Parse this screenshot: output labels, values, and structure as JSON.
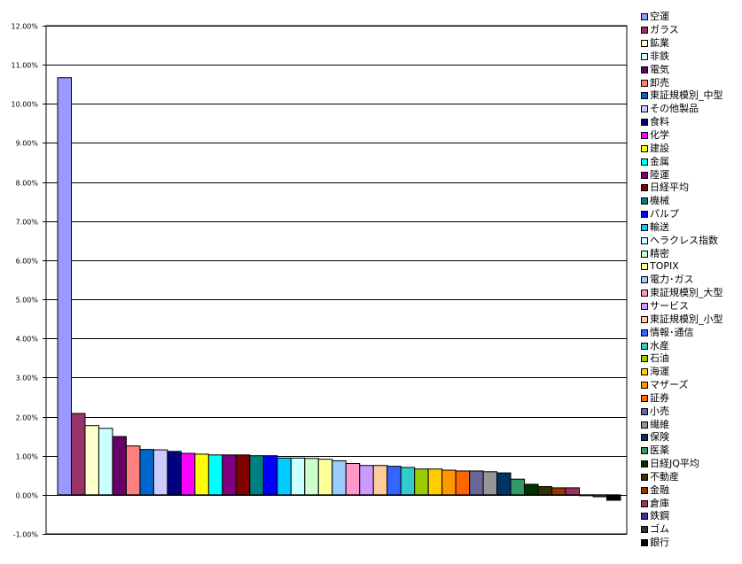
{
  "chart_data": {
    "type": "bar",
    "ylim": [
      -0.01,
      0.12
    ],
    "grid": true,
    "legend_position": "right",
    "y_tick_labels": [
      "-1.00%",
      "0.00%",
      "1.00%",
      "2.00%",
      "3.00%",
      "4.00%",
      "5.00%",
      "6.00%",
      "7.00%",
      "8.00%",
      "9.00%",
      "10.00%",
      "11.00%",
      "12.00%"
    ],
    "series": [
      {
        "name": "空運",
        "value": 0.1067,
        "color": "#9999FF"
      },
      {
        "name": "ガラス",
        "value": 0.0208,
        "color": "#993366"
      },
      {
        "name": "鉱業",
        "value": 0.0177,
        "color": "#FFFFCC"
      },
      {
        "name": "非鉄",
        "value": 0.017,
        "color": "#CCFFFF"
      },
      {
        "name": "電気",
        "value": 0.0149,
        "color": "#660066"
      },
      {
        "name": "卸売",
        "value": 0.0125,
        "color": "#FF8080"
      },
      {
        "name": "東証規模別_中型",
        "value": 0.0116,
        "color": "#0066CC"
      },
      {
        "name": "その他製品",
        "value": 0.0115,
        "color": "#CCCCFF"
      },
      {
        "name": "食料",
        "value": 0.0111,
        "color": "#000080"
      },
      {
        "name": "化学",
        "value": 0.0106,
        "color": "#FF00FF"
      },
      {
        "name": "建設",
        "value": 0.0104,
        "color": "#FFFF00"
      },
      {
        "name": "金属",
        "value": 0.0102,
        "color": "#00FFFF"
      },
      {
        "name": "陸運",
        "value": 0.0102,
        "color": "#800080"
      },
      {
        "name": "日経平均",
        "value": 0.0102,
        "color": "#800000"
      },
      {
        "name": "機械",
        "value": 0.01,
        "color": "#008080"
      },
      {
        "name": "パルプ",
        "value": 0.01,
        "color": "#0000FF"
      },
      {
        "name": "輸送",
        "value": 0.0094,
        "color": "#00CCFF"
      },
      {
        "name": "ヘラクレス指数",
        "value": 0.0094,
        "color": "#CCFFFF"
      },
      {
        "name": "精密",
        "value": 0.0093,
        "color": "#CCFFCC"
      },
      {
        "name": "TOPIX",
        "value": 0.0091,
        "color": "#FFFF99"
      },
      {
        "name": "電力･ガス",
        "value": 0.0087,
        "color": "#99CCFF"
      },
      {
        "name": "東証規模別_大型",
        "value": 0.008,
        "color": "#FF99CC"
      },
      {
        "name": "サービス",
        "value": 0.0075,
        "color": "#CC99FF"
      },
      {
        "name": "東証規模別_小型",
        "value": 0.0075,
        "color": "#FFCC99"
      },
      {
        "name": "情報･通信",
        "value": 0.0073,
        "color": "#3366FF"
      },
      {
        "name": "水産",
        "value": 0.007,
        "color": "#33CCCC"
      },
      {
        "name": "石油",
        "value": 0.0066,
        "color": "#99CC00"
      },
      {
        "name": "海運",
        "value": 0.0066,
        "color": "#FFCC00"
      },
      {
        "name": "マザーズ",
        "value": 0.0063,
        "color": "#FF9900"
      },
      {
        "name": "証券",
        "value": 0.0061,
        "color": "#FF6600"
      },
      {
        "name": "小売",
        "value": 0.0061,
        "color": "#666699"
      },
      {
        "name": "繊維",
        "value": 0.0059,
        "color": "#969696"
      },
      {
        "name": "保険",
        "value": 0.0056,
        "color": "#003366"
      },
      {
        "name": "医薬",
        "value": 0.004,
        "color": "#339966"
      },
      {
        "name": "日経JQ平均",
        "value": 0.0027,
        "color": "#003300"
      },
      {
        "name": "不動産",
        "value": 0.0021,
        "color": "#333300"
      },
      {
        "name": "金融",
        "value": 0.0018,
        "color": "#993300"
      },
      {
        "name": "倉庫",
        "value": 0.0018,
        "color": "#993366"
      },
      {
        "name": "鉄鋼",
        "value": -0.0002,
        "color": "#333399"
      },
      {
        "name": "ゴム",
        "value": -0.0005,
        "color": "#333333"
      },
      {
        "name": "銀行",
        "value": -0.0014,
        "color": "#000000"
      }
    ]
  }
}
